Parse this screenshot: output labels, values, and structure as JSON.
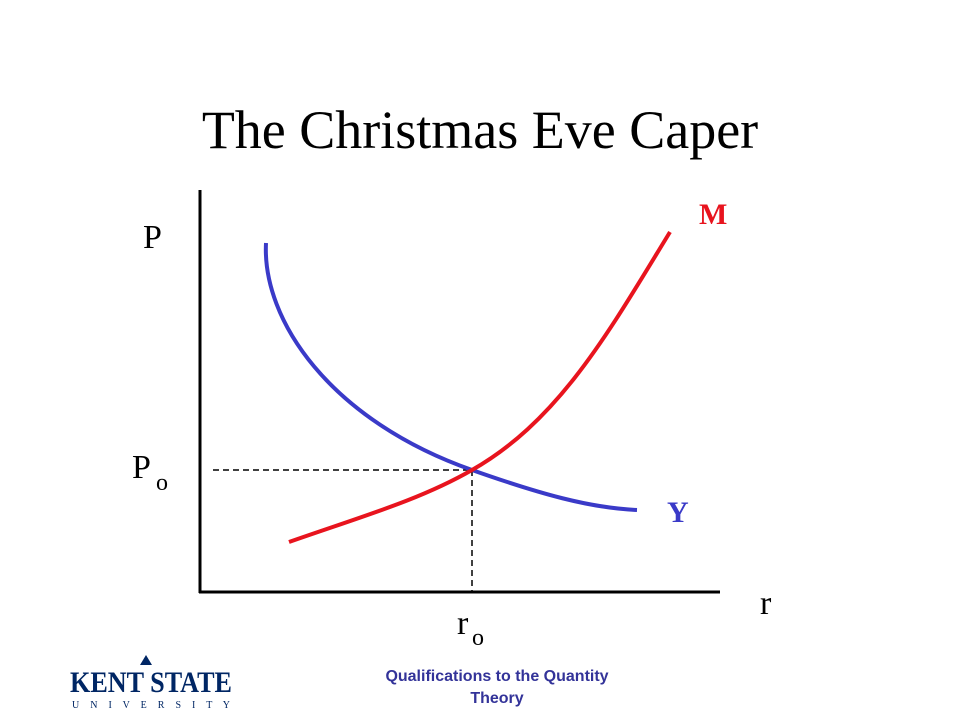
{
  "title": "The Christmas Eve Caper",
  "axes": {
    "y_label": "P",
    "x_label": "r"
  },
  "curves": {
    "m_label": "M",
    "y_label": "Y"
  },
  "equilibrium": {
    "p": {
      "main": "P",
      "sub": "o"
    },
    "r": {
      "main": "r",
      "sub": "o"
    }
  },
  "footer": {
    "lines": [
      "Qualifications to the Quantity",
      "Theory"
    ]
  },
  "logo": {
    "name": "KENT STATE",
    "sub": "U N I V E R S I T Y"
  }
}
